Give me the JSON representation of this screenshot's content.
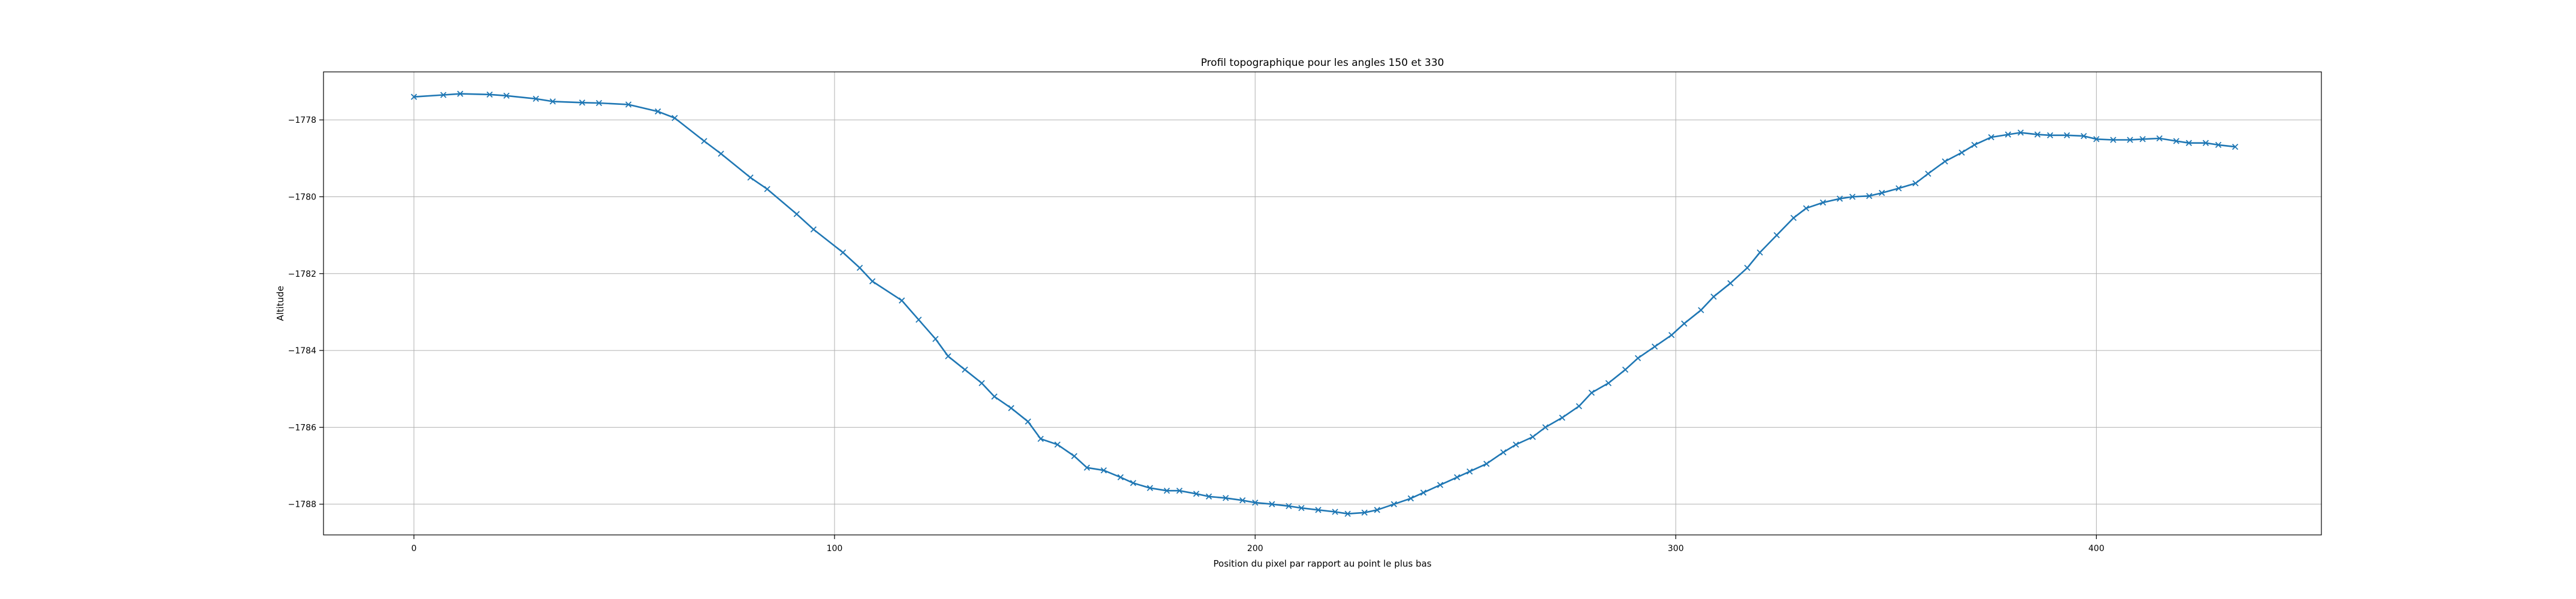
{
  "chart_data": {
    "type": "line",
    "title": "Profil topographique pour les angles 150 et 330",
    "xlabel": "Position du pixel par rapport au point le plus bas",
    "ylabel": "Altitude",
    "xlim": [
      -21.5,
      453.5
    ],
    "ylim": [
      -1788.8,
      -1776.75
    ],
    "xticks": [
      0,
      100,
      200,
      300,
      400
    ],
    "yticks": [
      -1778,
      -1780,
      -1782,
      -1784,
      -1786,
      -1788
    ],
    "grid": true,
    "color": "#1f77b4",
    "marker": "x",
    "series": [
      {
        "x": [
          0,
          7,
          11,
          18,
          22,
          29,
          33,
          40,
          44,
          51,
          58,
          62,
          69,
          73,
          80,
          84,
          91,
          95,
          102,
          106,
          109,
          116,
          120,
          124,
          127,
          131,
          135,
          138,
          142,
          146,
          149,
          153,
          157,
          160,
          164,
          168,
          171,
          175,
          179,
          182,
          186,
          189,
          193,
          197,
          200,
          204,
          208,
          211,
          215,
          219,
          222,
          226,
          229,
          233,
          237,
          240,
          244,
          248,
          251,
          255,
          259,
          262,
          266,
          269,
          273,
          277,
          280,
          284,
          288,
          291,
          295,
          299,
          302,
          306,
          309,
          313,
          317,
          320,
          324,
          328,
          331,
          335,
          339,
          342,
          346,
          349,
          353,
          357,
          360,
          364,
          368,
          371,
          375,
          379,
          382,
          386,
          389,
          393,
          397,
          400,
          404,
          408,
          411,
          415,
          419,
          422,
          426,
          429,
          433
        ],
        "y": [
          -1777.4,
          -1777.35,
          -1777.32,
          -1777.34,
          -1777.37,
          -1777.45,
          -1777.52,
          -1777.55,
          -1777.56,
          -1777.6,
          -1777.78,
          -1777.95,
          -1778.55,
          -1778.88,
          -1779.5,
          -1779.8,
          -1780.45,
          -1780.85,
          -1781.45,
          -1781.85,
          -1782.2,
          -1782.7,
          -1783.2,
          -1783.7,
          -1784.15,
          -1784.5,
          -1784.85,
          -1785.2,
          -1785.5,
          -1785.85,
          -1786.3,
          -1786.45,
          -1786.75,
          -1787.05,
          -1787.12,
          -1787.3,
          -1787.45,
          -1787.58,
          -1787.65,
          -1787.65,
          -1787.73,
          -1787.8,
          -1787.84,
          -1787.9,
          -1787.96,
          -1788.0,
          -1788.05,
          -1788.1,
          -1788.15,
          -1788.2,
          -1788.25,
          -1788.22,
          -1788.15,
          -1788.0,
          -1787.85,
          -1787.7,
          -1787.5,
          -1787.3,
          -1787.15,
          -1786.95,
          -1786.65,
          -1786.45,
          -1786.25,
          -1786.0,
          -1785.75,
          -1785.45,
          -1785.1,
          -1784.85,
          -1784.5,
          -1784.2,
          -1783.9,
          -1783.6,
          -1783.3,
          -1782.95,
          -1782.6,
          -1782.25,
          -1781.85,
          -1781.45,
          -1781.0,
          -1780.55,
          -1780.3,
          -1780.15,
          -1780.05,
          -1780.0,
          -1779.98,
          -1779.9,
          -1779.78,
          -1779.65,
          -1779.4,
          -1779.08,
          -1778.85,
          -1778.65,
          -1778.45,
          -1778.38,
          -1778.33,
          -1778.38,
          -1778.4,
          -1778.4,
          -1778.42,
          -1778.5,
          -1778.52,
          -1778.52,
          -1778.5,
          -1778.48,
          -1778.55,
          -1778.6,
          -1778.6,
          -1778.65,
          -1778.7
        ]
      }
    ]
  }
}
